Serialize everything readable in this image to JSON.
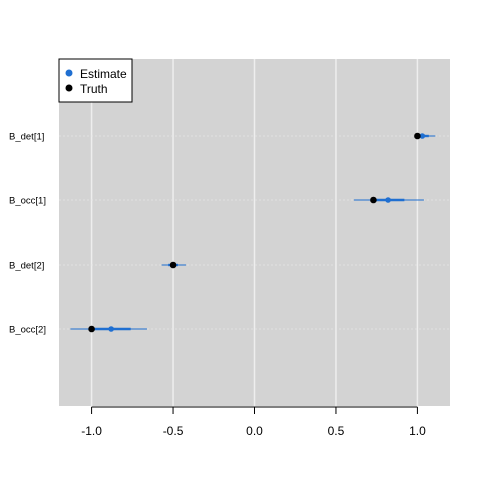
{
  "chart_data": {
    "type": "scatter",
    "title": "",
    "xlabel": "",
    "ylabel": "",
    "xlim": [
      -1.2,
      1.2
    ],
    "xticks": [
      -1.0,
      -0.5,
      0.0,
      0.5,
      1.0
    ],
    "xtick_labels": [
      "-1.0",
      "-0.5",
      "0.0",
      "0.5",
      "1.0"
    ],
    "grid": true,
    "legend_position": "top-left",
    "categories": [
      "B_det[1]",
      "B_occ[1]",
      "B_det[2]",
      "B_occ[2]"
    ],
    "series": [
      {
        "name": "Estimate",
        "color": "#1f6fd1",
        "values": [
          1.03,
          0.82,
          -0.5,
          -0.88
        ],
        "interval_outer": [
          [
            0.99,
            1.11
          ],
          [
            0.61,
            1.04
          ],
          [
            -0.57,
            -0.42
          ],
          [
            -1.13,
            -0.66
          ]
        ],
        "interval_inner": [
          [
            1.01,
            1.07
          ],
          [
            0.72,
            0.92
          ],
          [
            -0.53,
            -0.47
          ],
          [
            -1.0,
            -0.76
          ]
        ]
      },
      {
        "name": "Truth",
        "color": "#000000",
        "values": [
          1.0,
          0.73,
          -0.5,
          -1.0
        ]
      }
    ]
  }
}
